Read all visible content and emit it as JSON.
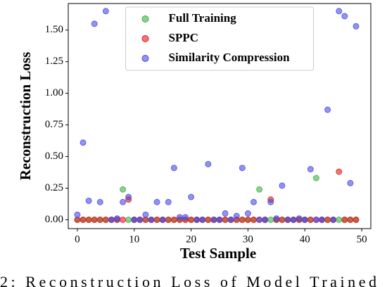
{
  "chart_data": {
    "type": "scatter",
    "xlabel": "Test Sample",
    "ylabel": "Reconstruction Loss",
    "x": [
      0,
      1,
      2,
      3,
      4,
      5,
      6,
      7,
      8,
      9,
      10,
      11,
      12,
      13,
      14,
      15,
      16,
      17,
      18,
      19,
      20,
      21,
      22,
      23,
      24,
      25,
      26,
      27,
      28,
      29,
      30,
      31,
      32,
      33,
      34,
      35,
      36,
      37,
      38,
      39,
      40,
      41,
      42,
      43,
      44,
      45,
      46,
      47,
      48,
      49
    ],
    "series": [
      {
        "name": "Full Training",
        "color": "#3cb043",
        "values": [
          0,
          0,
          0,
          0,
          0,
          0,
          0,
          0,
          0.24,
          0,
          0,
          0,
          0,
          0,
          0,
          0,
          0,
          0,
          0,
          0,
          0,
          0,
          0,
          0,
          0,
          0,
          0,
          0,
          0,
          0,
          0,
          0,
          0.24,
          0,
          0,
          0,
          0,
          0,
          0,
          0,
          0,
          0,
          0.33,
          0,
          0,
          0,
          0,
          0,
          0,
          0
        ]
      },
      {
        "name": "SPPC",
        "color": "#e41a1c",
        "values": [
          0,
          0,
          0,
          0,
          0,
          0,
          0,
          0,
          0,
          0.16,
          0,
          0,
          0,
          0,
          0,
          0,
          0,
          0,
          0,
          0,
          0,
          0,
          0,
          0,
          0,
          0,
          0,
          0,
          0,
          0,
          0,
          0,
          0,
          0,
          0.16,
          0,
          0,
          0,
          0,
          0,
          0,
          0,
          0,
          0,
          0,
          0,
          0.38,
          0,
          0,
          0
        ]
      },
      {
        "name": "Similarity Compression",
        "color": "#4a4ae8",
        "values": [
          0.04,
          0.61,
          0.15,
          1.55,
          0.14,
          1.65,
          0,
          0.01,
          0.14,
          0.18,
          0,
          0,
          0.04,
          0,
          0.14,
          0,
          0.14,
          0.41,
          0.02,
          0.02,
          0.18,
          0,
          0,
          0.44,
          0,
          0,
          0.05,
          0,
          0.03,
          0.41,
          0.05,
          0.14,
          0,
          0,
          0.14,
          0.01,
          0.27,
          0,
          0,
          0.01,
          0,
          0.4,
          0,
          0,
          0.87,
          0,
          1.65,
          1.61,
          0.29,
          1.53
        ]
      }
    ],
    "xlim": [
      -1.6,
      51.6
    ],
    "ylim": [
      -0.07,
      1.71
    ],
    "xticks": [
      0,
      10,
      20,
      30,
      40,
      50
    ],
    "yticks": [
      {
        "value": 0,
        "label": "0.00"
      },
      {
        "value": 0.25,
        "label": "0.25"
      },
      {
        "value": 0.5,
        "label": "0.50"
      },
      {
        "value": 0.75,
        "label": "0.75"
      },
      {
        "value": 1,
        "label": "1.00"
      },
      {
        "value": 1.25,
        "label": "1.25"
      },
      {
        "value": 1.5,
        "label": "1.50"
      }
    ],
    "legend": "upper center",
    "caption": "2: Reconstruction Loss of Model Trained"
  }
}
